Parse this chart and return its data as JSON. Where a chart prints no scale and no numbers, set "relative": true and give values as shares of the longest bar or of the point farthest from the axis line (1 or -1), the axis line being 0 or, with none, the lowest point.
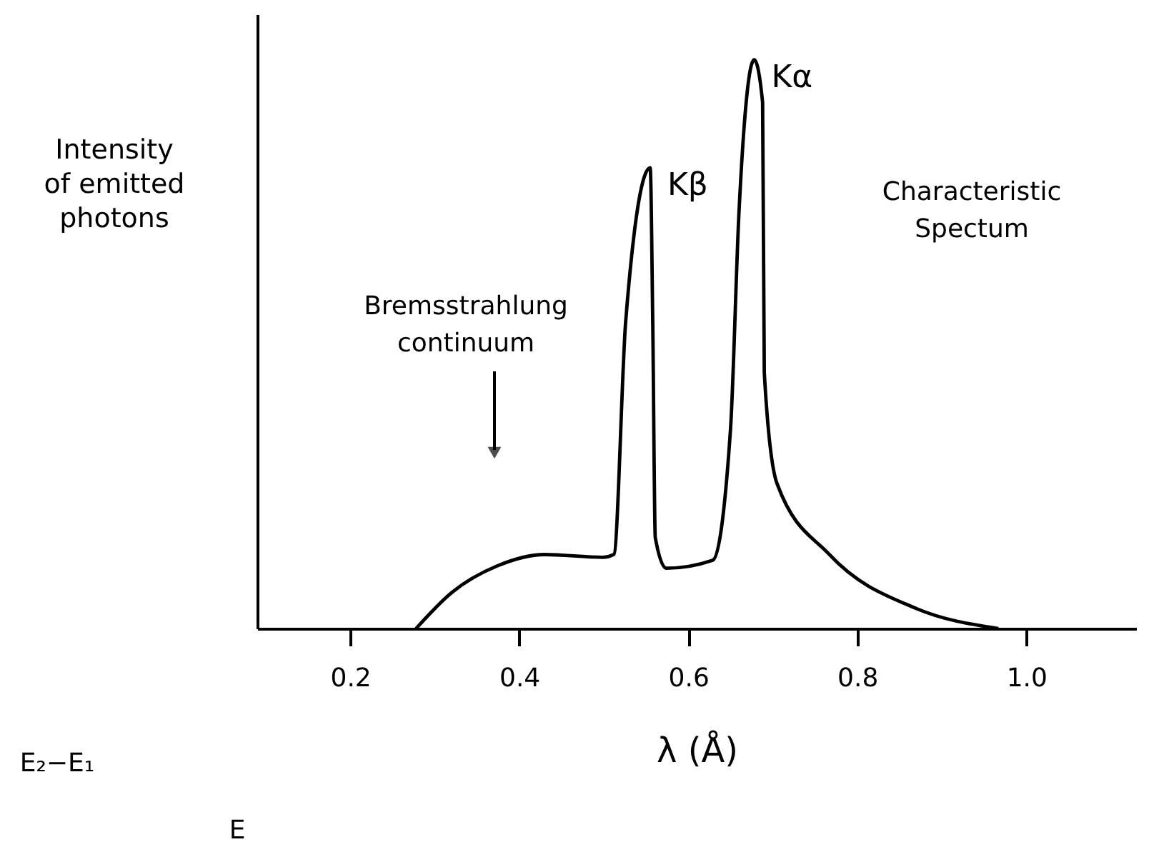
{
  "chart_data": {
    "type": "line",
    "relative": true,
    "xlabel": "λ (Å)",
    "ylabel": "Intensity of emitted photons",
    "x": [
      0.278,
      0.32,
      0.374,
      0.43,
      0.499,
      0.512,
      0.526,
      0.555,
      0.558,
      0.561,
      0.574,
      0.629,
      0.65,
      0.66,
      0.678,
      0.688,
      0.69,
      0.705,
      0.767,
      0.87,
      0.967
    ],
    "values": [
      0,
      0.063,
      0.11,
      0.13,
      0.125,
      0.13,
      0.54,
      0.81,
      0.54,
      0.16,
      0.106,
      0.12,
      0.35,
      0.73,
      1.0,
      0.925,
      0.45,
      0.255,
      0.13,
      0.035,
      0
    ],
    "color": "#000000",
    "line_style": "solid",
    "marker": "none",
    "grid": false,
    "xlim": [
      0.09,
      1.13
    ],
    "xticks": [
      0.2,
      0.4,
      0.6,
      0.8,
      {
        "value": 1,
        "label": "1.0"
      }
    ],
    "annotations": [
      {
        "text": "Kβ",
        "x": 0.555,
        "y": 0.81
      },
      {
        "text": "Kα",
        "x": 0.678,
        "y": 1.0
      },
      "Bremsstrahlung continuum",
      "Characteristic Spectum",
      "E₂−E₁",
      "E"
    ]
  }
}
